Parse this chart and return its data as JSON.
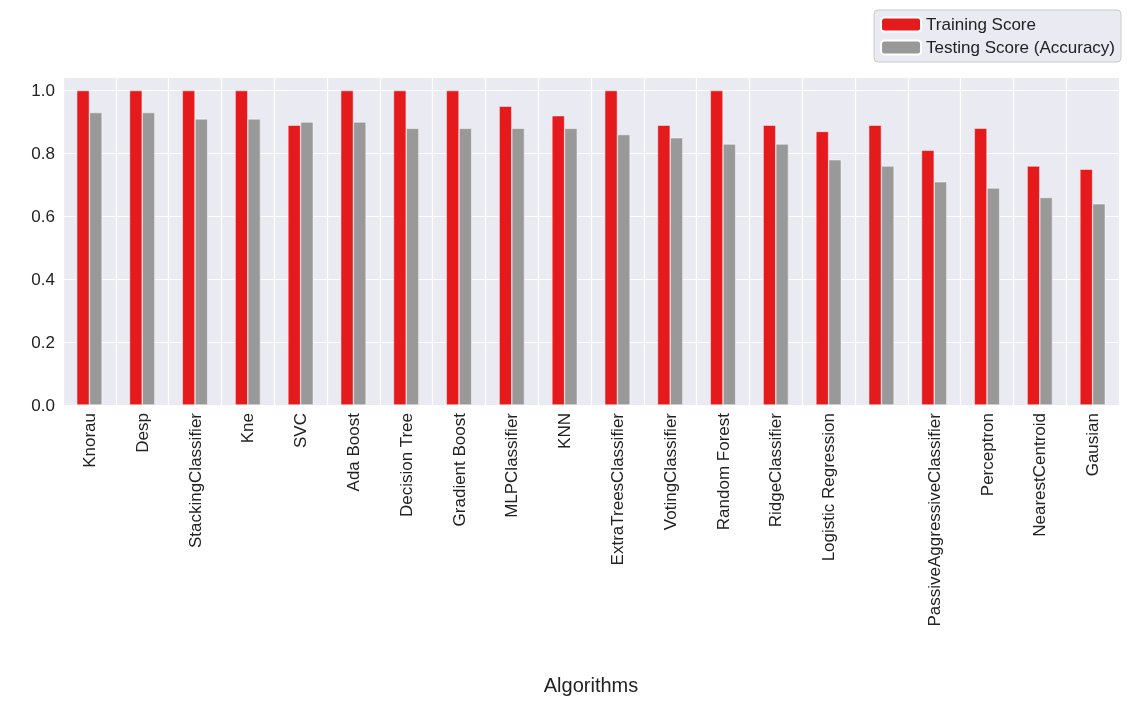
{
  "chart_data": {
    "type": "bar",
    "xlabel": "Algorithms",
    "categories": [
      "Knorau",
      "Desp",
      "StackingClassifier",
      "Kne",
      "SVC",
      "Ada Boost",
      "Decision Tree",
      "Gradient Boost",
      "MLPClassifier",
      "KNN",
      "ExtraTreesClassifier",
      "VotingClassifier",
      "Random Forest",
      "RidgeClassifier",
      "Logistic Regression",
      null,
      "PassiveAggressiveClassifier",
      "Perceptron",
      "NearestCentroid",
      "Gausian"
    ],
    "series": [
      {
        "name": "Training Score",
        "color": "#e41a1c",
        "values": [
          1,
          1,
          1,
          1,
          0.89,
          1,
          1,
          1,
          0.95,
          0.92,
          1,
          0.89,
          1,
          0.89,
          0.87,
          0.89,
          0.81,
          0.88,
          0.76,
          0.75
        ]
      },
      {
        "name": "Testing Score (Accuracy)",
        "color": "#999999",
        "values": [
          0.93,
          0.93,
          0.91,
          0.91,
          0.9,
          0.9,
          0.88,
          0.88,
          0.88,
          0.88,
          0.86,
          0.85,
          0.83,
          0.83,
          0.78,
          0.76,
          0.71,
          0.69,
          0.66,
          0.64
        ]
      }
    ],
    "ylim": [
      0,
      1.04
    ],
    "yticks": [
      {
        "value": 0,
        "label": "0.0"
      },
      0.2,
      0.4,
      0.6,
      0.8,
      {
        "value": 1,
        "label": "1.0"
      }
    ],
    "grid": true,
    "legend": "top right"
  }
}
